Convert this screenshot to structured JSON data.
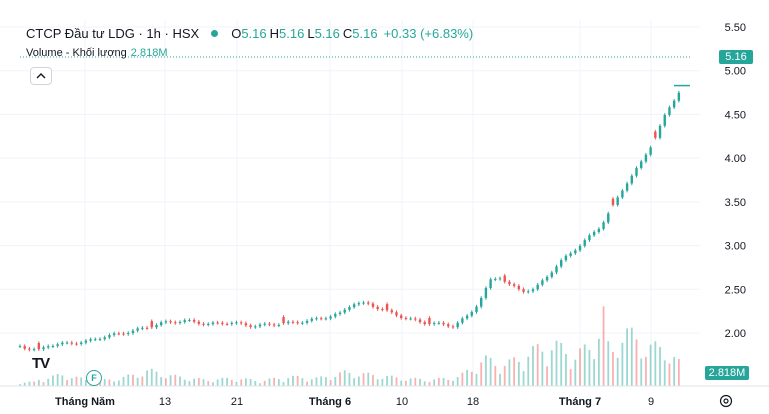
{
  "legend": {
    "symbol": "CTCP Đầu tư LDG · 1h · HSX",
    "open_label": "O",
    "open": "5.16",
    "high_label": "H",
    "high": "5.16",
    "low_label": "L",
    "low": "5.16",
    "close_label": "C",
    "close": "5.16",
    "change": "+0.33 (+6.83%)"
  },
  "volume_legend": {
    "label": "Volume - Khối lượng",
    "value": "2.818M"
  },
  "price_tag": "5.16",
  "volume_tag": "2.818M",
  "logo_text": "TV",
  "event_badge": "F",
  "colors": {
    "up": "#26a69a",
    "down": "#ef5350",
    "grid": "#f0f3fa",
    "axis_text": "#131722"
  },
  "chart_data": {
    "type": "candlestick",
    "y_axis": {
      "ticks": [
        "5.50",
        "5.00",
        "4.50",
        "4.00",
        "3.50",
        "3.00",
        "2.50",
        "2.00"
      ],
      "range": [
        1.7,
        5.6
      ]
    },
    "x_axis": {
      "ticks": [
        {
          "label": "Tháng Năm",
          "bold": true
        },
        {
          "label": "13",
          "bold": false
        },
        {
          "label": "21",
          "bold": false
        },
        {
          "label": "Tháng 6",
          "bold": true
        },
        {
          "label": "10",
          "bold": false
        },
        {
          "label": "18",
          "bold": false
        },
        {
          "label": "Tháng 7",
          "bold": true
        },
        {
          "label": "9",
          "bold": false
        }
      ]
    },
    "last_price": 5.16,
    "price_path": [
      [
        0,
        1.85
      ],
      [
        6,
        1.82
      ],
      [
        12,
        1.8
      ],
      [
        18,
        1.86
      ],
      [
        30,
        1.88
      ],
      [
        42,
        1.9
      ],
      [
        54,
        1.96
      ],
      [
        66,
        2.0
      ],
      [
        78,
        2.05
      ],
      [
        92,
        2.12
      ],
      [
        106,
        2.14
      ],
      [
        120,
        2.1
      ],
      [
        134,
        2.12
      ],
      [
        148,
        2.08
      ],
      [
        162,
        2.1
      ],
      [
        176,
        2.12
      ],
      [
        190,
        2.16
      ],
      [
        204,
        2.22
      ],
      [
        212,
        2.34
      ],
      [
        222,
        2.33
      ],
      [
        232,
        2.26
      ],
      [
        244,
        2.18
      ],
      [
        256,
        2.12
      ],
      [
        268,
        2.1
      ],
      [
        276,
        2.08
      ],
      [
        286,
        2.2
      ],
      [
        292,
        2.34
      ],
      [
        300,
        2.6
      ],
      [
        306,
        2.64
      ],
      [
        312,
        2.55
      ],
      [
        320,
        2.48
      ],
      [
        328,
        2.5
      ],
      [
        336,
        2.65
      ],
      [
        346,
        2.84
      ],
      [
        358,
        3.02
      ],
      [
        370,
        3.22
      ],
      [
        378,
        3.45
      ],
      [
        386,
        3.7
      ],
      [
        396,
        3.95
      ],
      [
        404,
        4.2
      ],
      [
        412,
        4.52
      ],
      [
        422,
        4.82
      ]
    ],
    "down_bars": [
      [
        12,
        1.8
      ],
      [
        84,
        2.04
      ],
      [
        168,
        2.1
      ],
      [
        234,
        2.28
      ],
      [
        260,
        2.1
      ],
      [
        309,
        2.6
      ],
      [
        378,
        3.55
      ],
      [
        404,
        4.15
      ]
    ],
    "volume_path": [
      [
        10,
        0.08
      ],
      [
        28,
        0.15
      ],
      [
        46,
        0.06
      ],
      [
        64,
        0.1
      ],
      [
        82,
        0.2
      ],
      [
        100,
        0.12
      ],
      [
        118,
        0.08
      ],
      [
        136,
        0.1
      ],
      [
        154,
        0.07
      ],
      [
        172,
        0.12
      ],
      [
        190,
        0.1
      ],
      [
        208,
        0.18
      ],
      [
        226,
        0.14
      ],
      [
        244,
        0.1
      ],
      [
        262,
        0.08
      ],
      [
        280,
        0.12
      ],
      [
        296,
        0.35
      ],
      [
        310,
        0.28
      ],
      [
        326,
        0.45
      ],
      [
        340,
        0.55
      ],
      [
        352,
        0.4
      ],
      [
        364,
        0.5
      ],
      [
        372,
        0.95
      ],
      [
        376,
        0.35
      ],
      [
        384,
        0.75
      ],
      [
        396,
        0.55
      ],
      [
        404,
        0.5
      ],
      [
        412,
        0.48
      ],
      [
        420,
        0.3
      ]
    ]
  }
}
